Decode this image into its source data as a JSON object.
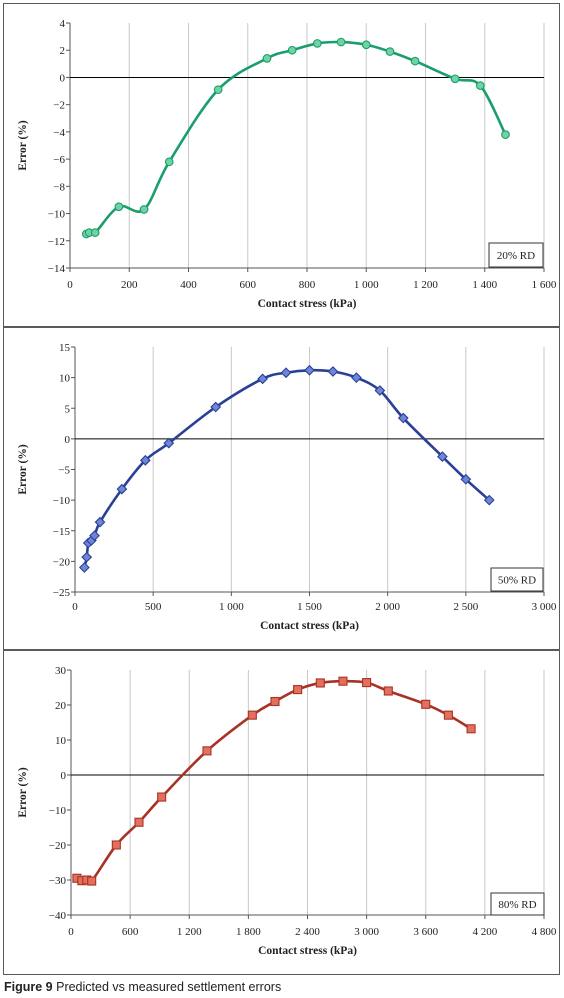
{
  "caption": {
    "label": "Figure 9",
    "text": "Predicted vs measured settlement errors"
  },
  "colors": {
    "series_20": "#1a9e6c",
    "marker_20": "#6fd3a4",
    "series_50": "#2a3f96",
    "marker_50": "#6f86d8",
    "series_80": "#a83226",
    "marker_80": "#e2705c",
    "grid": "#c8c8c8",
    "zero_line": "#000000"
  },
  "chart_data": [
    {
      "type": "line",
      "xlabel": "Contact stress (kPa)",
      "ylabel": "Error (%)",
      "legend_box": "20% RD",
      "legend_position": "bottom-right",
      "xlim": [
        0,
        1600
      ],
      "ylim": [
        -14,
        4
      ],
      "xticks": [
        0,
        200,
        400,
        600,
        800,
        1000,
        1200,
        1400,
        1600
      ],
      "xtick_labels": [
        "0",
        "200",
        "400",
        "600",
        "800",
        "1 000",
        "1 200",
        "1 400",
        "1 600"
      ],
      "yticks": [
        -14,
        -12,
        -10,
        -8,
        -6,
        -4,
        -2,
        0,
        2,
        4
      ],
      "ytick_labels": [
        "−14",
        "−12",
        "−10",
        "−8",
        "−6",
        "−4",
        "−2",
        "0",
        "2",
        "4"
      ],
      "grid": true,
      "marker": "circle",
      "series": [
        {
          "x": [
            55,
            65,
            85,
            165,
            250,
            335,
            500,
            665,
            750,
            835,
            915,
            1000,
            1080,
            1165,
            1300,
            1385,
            1470
          ],
          "y": [
            -11.5,
            -11.4,
            -11.4,
            -9.5,
            -9.7,
            -6.2,
            -0.9,
            1.4,
            2.0,
            2.5,
            2.6,
            2.4,
            1.9,
            1.2,
            -0.1,
            -0.6,
            -4.2
          ]
        }
      ]
    },
    {
      "type": "line",
      "xlabel": "Contact stress (kPa)",
      "ylabel": "Error (%)",
      "legend_box": "50% RD",
      "legend_position": "bottom-right",
      "xlim": [
        0,
        3000
      ],
      "ylim": [
        -25,
        15
      ],
      "xticks": [
        0,
        500,
        1000,
        1500,
        2000,
        2500,
        3000
      ],
      "xtick_labels": [
        "0",
        "500",
        "1 000",
        "1 500",
        "2 000",
        "2 500",
        "3 000"
      ],
      "yticks": [
        -25,
        -20,
        -15,
        -10,
        -5,
        0,
        5,
        10,
        15
      ],
      "ytick_labels": [
        "−25",
        "−20",
        "−15",
        "−10",
        "−5",
        "0",
        "5",
        "10",
        "15"
      ],
      "grid": true,
      "marker": "diamond",
      "series": [
        {
          "x": [
            60,
            75,
            85,
            105,
            125,
            160,
            300,
            450,
            600,
            900,
            1200,
            1350,
            1500,
            1650,
            1800,
            1950,
            2100,
            2350,
            2500,
            2650
          ],
          "y": [
            -21.0,
            -19.3,
            -17.0,
            -16.6,
            -15.8,
            -13.6,
            -8.2,
            -3.5,
            -0.7,
            5.2,
            9.8,
            10.8,
            11.2,
            11.0,
            10.0,
            7.9,
            3.4,
            -2.9,
            -6.6,
            -10.0
          ]
        }
      ]
    },
    {
      "type": "line",
      "xlabel": "Contact stress (kPa)",
      "ylabel": "Error (%)",
      "legend_box": "80% RD",
      "legend_position": "bottom-right",
      "xlim": [
        0,
        4800
      ],
      "ylim": [
        -40,
        30
      ],
      "xticks": [
        0,
        600,
        1200,
        1800,
        2400,
        3000,
        3600,
        4200,
        4800
      ],
      "xtick_labels": [
        "0",
        "600",
        "1 200",
        "1 800",
        "2 400",
        "3 000",
        "3 600",
        "4 200",
        "4 800"
      ],
      "yticks": [
        -40,
        -30,
        -20,
        -10,
        0,
        10,
        20,
        30
      ],
      "ytick_labels": [
        "−40",
        "−30",
        "−20",
        "−10",
        "0",
        "10",
        "20",
        "30"
      ],
      "grid": true,
      "marker": "square",
      "series": [
        {
          "x": [
            60,
            110,
            160,
            210,
            460,
            690,
            920,
            1380,
            1840,
            2070,
            2300,
            2530,
            2760,
            3000,
            3220,
            3600,
            3830,
            4060
          ],
          "y": [
            -29.5,
            -30.2,
            -30.0,
            -30.3,
            -20.0,
            -13.5,
            -6.3,
            6.9,
            17.1,
            21.0,
            24.4,
            26.3,
            26.8,
            26.4,
            24.0,
            20.2,
            17.1,
            13.2
          ]
        }
      ]
    }
  ]
}
